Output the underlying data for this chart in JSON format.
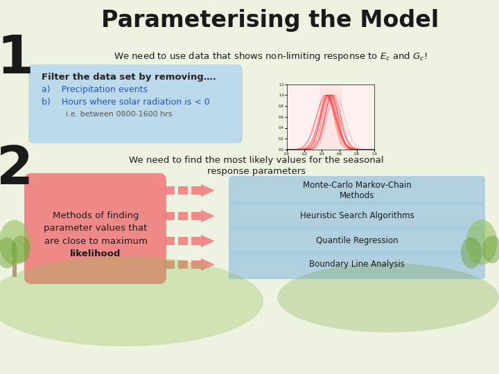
{
  "title": "Parameterising the Model",
  "bg_color": "#eef2e0",
  "title_color": "#1a1a1a",
  "title_fontsize": 24,
  "subtitle1": "We need to use data that shows non-limiting response to $E_c$ and $G_c$!",
  "filter_title": "Filter the data set by removing….",
  "filter_a": "a)    Precipitation events",
  "filter_b": "b)    Hours where solar radiation is < 0",
  "filter_c": "i.e. between 0800-1600 hrs",
  "filter_box_color": "#b8d8ee",
  "section2_text1": "We need to find the most likely values for the seasonal",
  "section2_text2": "response parameters",
  "left_box_lines": [
    "Methods of finding",
    "parameter values that",
    "are close to maximum",
    "likelihood"
  ],
  "left_box_bold": [
    false,
    false,
    false,
    true
  ],
  "left_box_color": "#f08080",
  "right_boxes": [
    "Monte-Carlo Markov-Chain\nMethods",
    "Heuristic Search Algorithms",
    "Quantile Regression",
    "Boundary Line Analysis"
  ],
  "right_box_color": "#a8cce0",
  "arrow_color": "#f08080",
  "num_color": "#1a1a1a",
  "tree_color1": "#8cbd50",
  "tree_color2": "#6a9d30"
}
